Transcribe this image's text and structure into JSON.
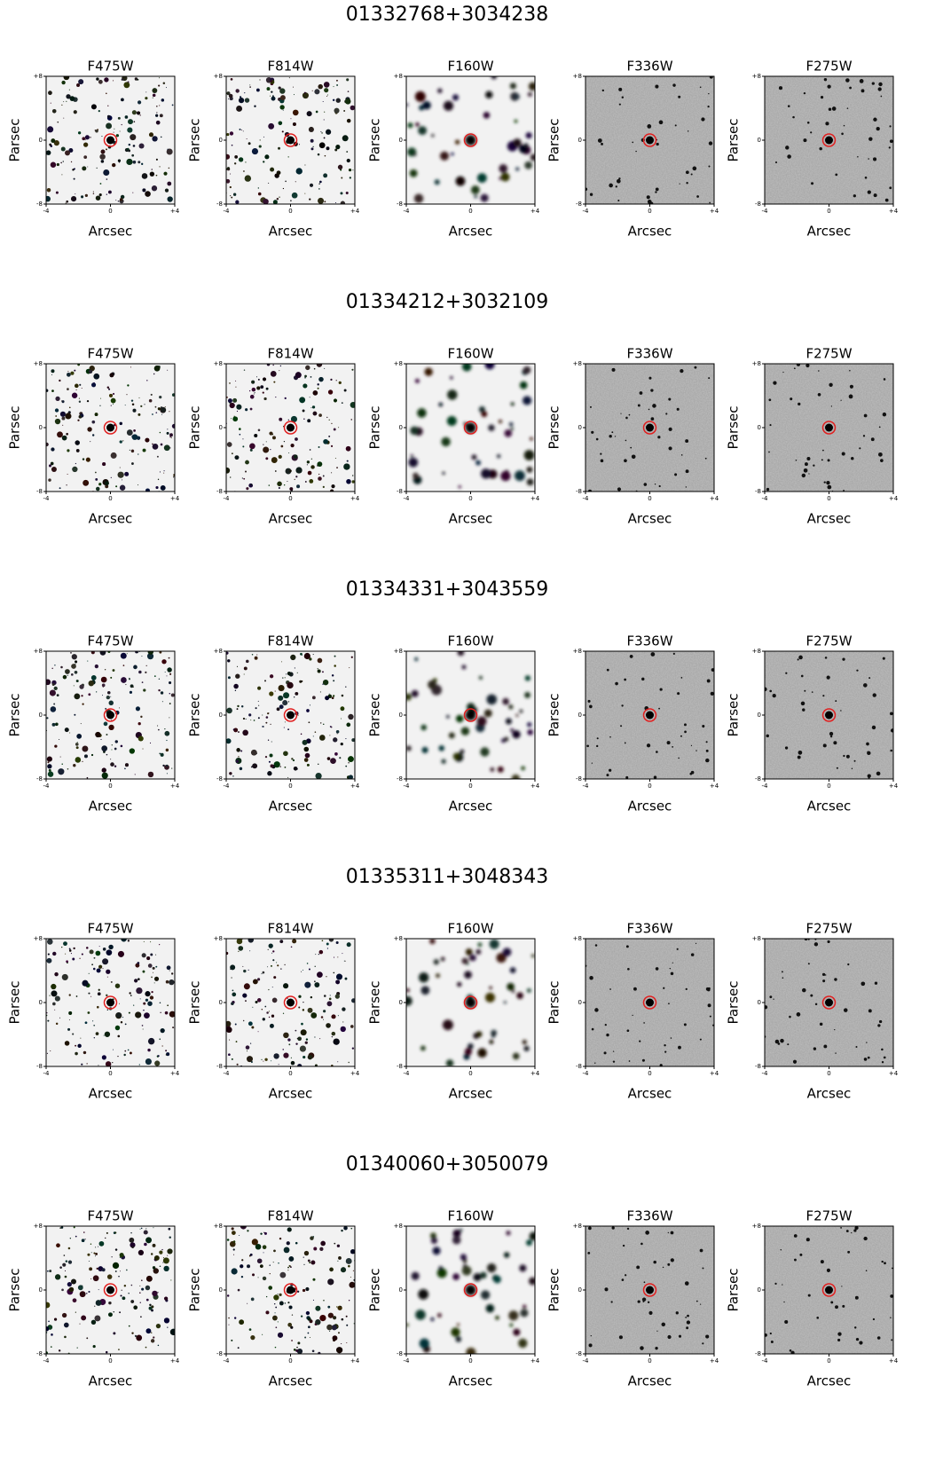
{
  "rows": [
    {
      "title": "01332768+3034238",
      "panels": [
        "F475W",
        "F814W",
        "F160W",
        "F336W",
        "F275W"
      ]
    },
    {
      "title": "01334212+3032109",
      "panels": [
        "F475W",
        "F814W",
        "F160W",
        "F336W",
        "F275W"
      ]
    },
    {
      "title": "01334331+3043559",
      "panels": [
        "F475W",
        "F814W",
        "F160W",
        "F336W",
        "F275W"
      ]
    },
    {
      "title": "01335311+3048343",
      "panels": [
        "F475W",
        "F814W",
        "F160W",
        "F336W",
        "F275W"
      ]
    },
    {
      "title": "01340060+3050079",
      "panels": [
        "F475W",
        "F814W",
        "F160W",
        "F336W",
        "F275W"
      ]
    }
  ],
  "axes": {
    "ylabel": "Parsec",
    "xlabel": "Arcsec",
    "yticks": [
      "+8",
      "0",
      "-8"
    ],
    "xticks": [
      "-4",
      "0",
      "+4"
    ]
  }
}
